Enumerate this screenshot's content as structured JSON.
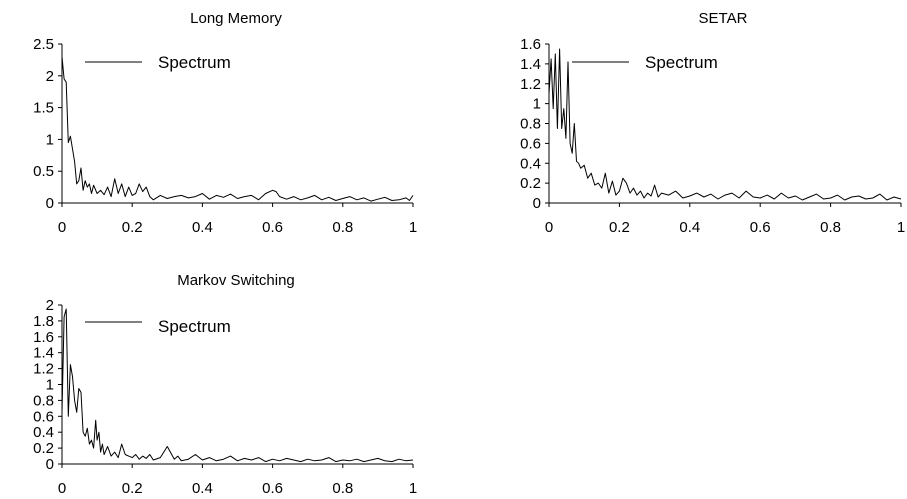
{
  "chart_data": [
    {
      "type": "line",
      "title": "Long Memory",
      "xlim": [
        0,
        1
      ],
      "ylim": [
        0,
        2.5
      ],
      "x_ticks": [
        0,
        0.2,
        0.4,
        0.6,
        0.8,
        1
      ],
      "x_tick_labels": [
        "0",
        "0.2",
        "0.4",
        "0.6",
        "0.8",
        "1"
      ],
      "y_ticks": [
        0,
        0.5,
        1,
        1.5,
        2,
        2.5
      ],
      "y_tick_labels": [
        "0",
        "0.5",
        "1",
        "1.5",
        "2",
        "2.5"
      ],
      "grid": false,
      "legend": "top-left",
      "series": [
        {
          "name": "Spectrum",
          "x": [
            0,
            0.006,
            0.012,
            0.018,
            0.024,
            0.03,
            0.036,
            0.042,
            0.048,
            0.054,
            0.06,
            0.066,
            0.072,
            0.078,
            0.084,
            0.09,
            0.1,
            0.11,
            0.12,
            0.13,
            0.14,
            0.15,
            0.16,
            0.17,
            0.18,
            0.19,
            0.2,
            0.21,
            0.22,
            0.23,
            0.24,
            0.25,
            0.26,
            0.28,
            0.3,
            0.32,
            0.34,
            0.36,
            0.38,
            0.4,
            0.42,
            0.44,
            0.46,
            0.48,
            0.5,
            0.52,
            0.54,
            0.56,
            0.58,
            0.6,
            0.61,
            0.62,
            0.64,
            0.66,
            0.68,
            0.7,
            0.72,
            0.74,
            0.76,
            0.78,
            0.8,
            0.82,
            0.84,
            0.86,
            0.88,
            0.9,
            0.92,
            0.94,
            0.96,
            0.98,
            0.99,
            1
          ],
          "values": [
            2.3,
            1.95,
            1.9,
            0.95,
            1.05,
            0.85,
            0.65,
            0.3,
            0.35,
            0.55,
            0.2,
            0.35,
            0.25,
            0.3,
            0.15,
            0.28,
            0.15,
            0.2,
            0.13,
            0.25,
            0.1,
            0.38,
            0.15,
            0.3,
            0.1,
            0.25,
            0.12,
            0.15,
            0.3,
            0.18,
            0.25,
            0.1,
            0.05,
            0.12,
            0.07,
            0.1,
            0.12,
            0.08,
            0.1,
            0.15,
            0.06,
            0.12,
            0.09,
            0.14,
            0.07,
            0.1,
            0.12,
            0.05,
            0.15,
            0.2,
            0.18,
            0.1,
            0.06,
            0.1,
            0.05,
            0.08,
            0.12,
            0.05,
            0.09,
            0.04,
            0.07,
            0.1,
            0.05,
            0.08,
            0.03,
            0.06,
            0.09,
            0.04,
            0.05,
            0.08,
            0.04,
            0.12
          ]
        }
      ]
    },
    {
      "type": "line",
      "title": "SETAR",
      "xlim": [
        0,
        1
      ],
      "ylim": [
        0,
        1.6
      ],
      "x_ticks": [
        0,
        0.2,
        0.4,
        0.6,
        0.8,
        1
      ],
      "x_tick_labels": [
        "0",
        "0.2",
        "0.4",
        "0.6",
        "0.8",
        "1"
      ],
      "y_ticks": [
        0,
        0.2,
        0.4,
        0.6,
        0.8,
        1,
        1.2,
        1.4,
        1.6
      ],
      "y_tick_labels": [
        "0",
        "0.2",
        "0.4",
        "0.6",
        "0.8",
        "1",
        "1.2",
        "1.4",
        "1.6"
      ],
      "grid": false,
      "legend": "top-left",
      "series": [
        {
          "name": "Spectrum",
          "x": [
            0,
            0.006,
            0.012,
            0.018,
            0.024,
            0.03,
            0.036,
            0.042,
            0.048,
            0.054,
            0.06,
            0.066,
            0.072,
            0.078,
            0.084,
            0.09,
            0.1,
            0.11,
            0.12,
            0.13,
            0.14,
            0.15,
            0.16,
            0.17,
            0.18,
            0.19,
            0.2,
            0.21,
            0.22,
            0.23,
            0.24,
            0.25,
            0.26,
            0.27,
            0.28,
            0.29,
            0.3,
            0.31,
            0.32,
            0.34,
            0.36,
            0.38,
            0.4,
            0.42,
            0.44,
            0.46,
            0.48,
            0.5,
            0.52,
            0.54,
            0.56,
            0.58,
            0.6,
            0.62,
            0.64,
            0.66,
            0.68,
            0.7,
            0.72,
            0.74,
            0.76,
            0.78,
            0.8,
            0.82,
            0.84,
            0.86,
            0.88,
            0.9,
            0.92,
            0.94,
            0.96,
            0.98,
            1
          ],
          "values": [
            1.1,
            1.45,
            0.95,
            1.5,
            0.75,
            1.55,
            0.75,
            0.95,
            0.65,
            1.42,
            0.6,
            0.5,
            0.8,
            0.42,
            0.4,
            0.35,
            0.38,
            0.25,
            0.3,
            0.18,
            0.2,
            0.15,
            0.3,
            0.1,
            0.22,
            0.08,
            0.12,
            0.25,
            0.2,
            0.1,
            0.15,
            0.08,
            0.12,
            0.05,
            0.1,
            0.07,
            0.18,
            0.06,
            0.1,
            0.08,
            0.12,
            0.05,
            0.07,
            0.1,
            0.06,
            0.09,
            0.04,
            0.08,
            0.1,
            0.05,
            0.12,
            0.06,
            0.05,
            0.08,
            0.04,
            0.1,
            0.05,
            0.07,
            0.03,
            0.06,
            0.09,
            0.04,
            0.05,
            0.08,
            0.03,
            0.06,
            0.07,
            0.04,
            0.05,
            0.09,
            0.03,
            0.06,
            0.04
          ]
        }
      ]
    },
    {
      "type": "line",
      "title": "Markov Switching",
      "xlim": [
        0,
        1
      ],
      "ylim": [
        0,
        2
      ],
      "x_ticks": [
        0,
        0.2,
        0.4,
        0.6,
        0.8,
        1
      ],
      "x_tick_labels": [
        "0",
        "0.2",
        "0.4",
        "0.6",
        "0.8",
        "1"
      ],
      "y_ticks": [
        0,
        0.2,
        0.4,
        0.6,
        0.8,
        1,
        1.2,
        1.4,
        1.6,
        1.8,
        2
      ],
      "y_tick_labels": [
        "0",
        "0.2",
        "0.4",
        "0.6",
        "0.8",
        "1",
        "1.2",
        "1.4",
        "1.6",
        "1.8",
        "2"
      ],
      "grid": false,
      "legend": "top-left",
      "series": [
        {
          "name": "Spectrum",
          "x": [
            0,
            0.006,
            0.012,
            0.018,
            0.024,
            0.03,
            0.036,
            0.042,
            0.048,
            0.054,
            0.06,
            0.066,
            0.072,
            0.078,
            0.084,
            0.09,
            0.096,
            0.1,
            0.105,
            0.11,
            0.115,
            0.12,
            0.13,
            0.14,
            0.15,
            0.16,
            0.17,
            0.18,
            0.19,
            0.2,
            0.21,
            0.22,
            0.23,
            0.24,
            0.25,
            0.26,
            0.28,
            0.3,
            0.32,
            0.33,
            0.34,
            0.36,
            0.38,
            0.4,
            0.42,
            0.44,
            0.46,
            0.48,
            0.5,
            0.52,
            0.54,
            0.56,
            0.58,
            0.6,
            0.62,
            0.64,
            0.66,
            0.68,
            0.7,
            0.72,
            0.74,
            0.76,
            0.78,
            0.8,
            0.82,
            0.84,
            0.86,
            0.88,
            0.9,
            0.92,
            0.94,
            0.96,
            0.98,
            1
          ],
          "values": [
            0.65,
            1.85,
            1.95,
            0.6,
            1.25,
            1.1,
            0.8,
            0.65,
            0.95,
            0.9,
            0.4,
            0.35,
            0.45,
            0.25,
            0.3,
            0.2,
            0.55,
            0.3,
            0.4,
            0.15,
            0.25,
            0.12,
            0.22,
            0.1,
            0.15,
            0.08,
            0.25,
            0.12,
            0.1,
            0.08,
            0.12,
            0.06,
            0.1,
            0.07,
            0.12,
            0.05,
            0.08,
            0.22,
            0.06,
            0.1,
            0.04,
            0.06,
            0.12,
            0.05,
            0.08,
            0.04,
            0.06,
            0.1,
            0.04,
            0.07,
            0.05,
            0.08,
            0.03,
            0.06,
            0.04,
            0.07,
            0.05,
            0.03,
            0.06,
            0.04,
            0.05,
            0.08,
            0.03,
            0.05,
            0.04,
            0.06,
            0.03,
            0.05,
            0.07,
            0.04,
            0.03,
            0.06,
            0.04,
            0.05
          ]
        }
      ]
    }
  ]
}
